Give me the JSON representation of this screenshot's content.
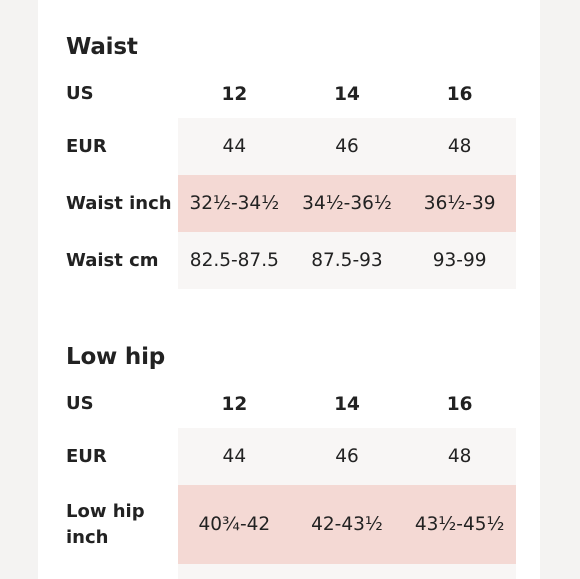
{
  "colors": {
    "row_alt": "#f8f6f5",
    "row_highlight": "#f4d9d4"
  },
  "waist": {
    "title": "Waist",
    "us": {
      "label": "US",
      "values": [
        "12",
        "14",
        "16"
      ]
    },
    "eur": {
      "label": "EUR",
      "values": [
        "44",
        "46",
        "48"
      ]
    },
    "inch": {
      "label": "Waist inch",
      "values": [
        "32½-34½",
        "34½-36½",
        "36½-39"
      ]
    },
    "cm": {
      "label": "Waist cm",
      "values": [
        "82.5-87.5",
        "87.5-93",
        "93-99"
      ]
    }
  },
  "low_hip": {
    "title": "Low hip",
    "us": {
      "label": "US",
      "values": [
        "12",
        "14",
        "16"
      ]
    },
    "eur": {
      "label": "EUR",
      "values": [
        "44",
        "46",
        "48"
      ]
    },
    "inch": {
      "label_line1": "Low hip",
      "label_line2": "inch",
      "values": [
        "40¾-42",
        "42-43½",
        "43½-45½"
      ]
    }
  }
}
